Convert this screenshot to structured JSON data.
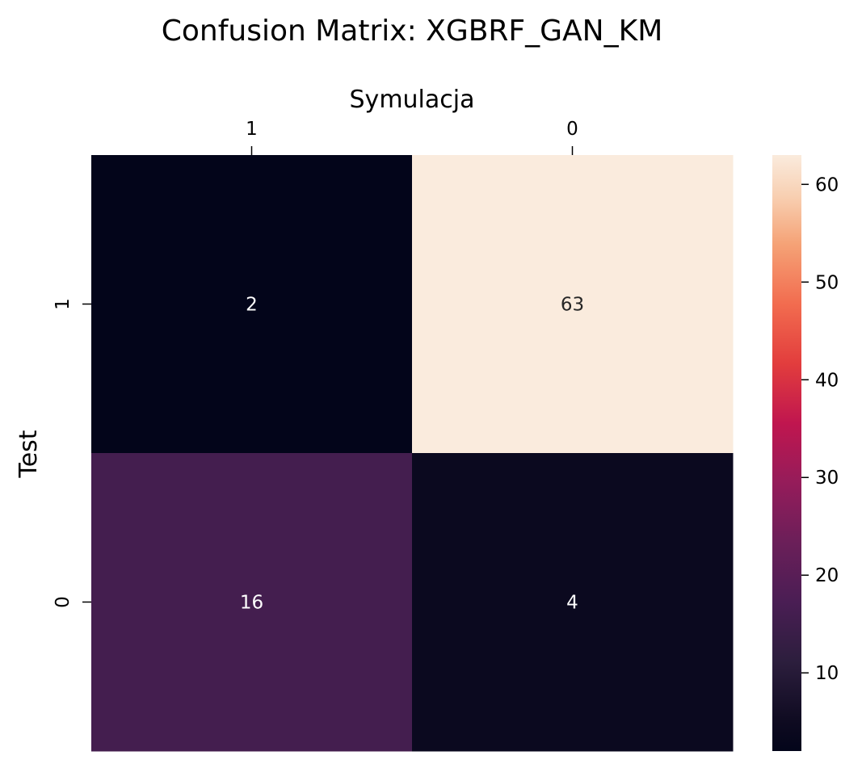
{
  "chart_data": {
    "type": "heatmap",
    "title": "Confusion Matrix: XGBRF_GAN_KM",
    "xlabel": "Symulacja",
    "ylabel": "Test",
    "x_categories": [
      "1",
      "0"
    ],
    "y_categories": [
      "1",
      "0"
    ],
    "values": [
      [
        2,
        63
      ],
      [
        16,
        4
      ]
    ],
    "annotations": [
      [
        "2",
        "63"
      ],
      [
        "16",
        "4"
      ]
    ],
    "x_axis_position": "top",
    "colorscale": "rocket",
    "colorbar": {
      "range": [
        2,
        63
      ],
      "ticks": [
        10,
        20,
        30,
        40,
        50,
        60
      ],
      "tick_labels": [
        "10",
        "20",
        "30",
        "40",
        "50",
        "60"
      ],
      "position": "right"
    },
    "grid": false
  }
}
